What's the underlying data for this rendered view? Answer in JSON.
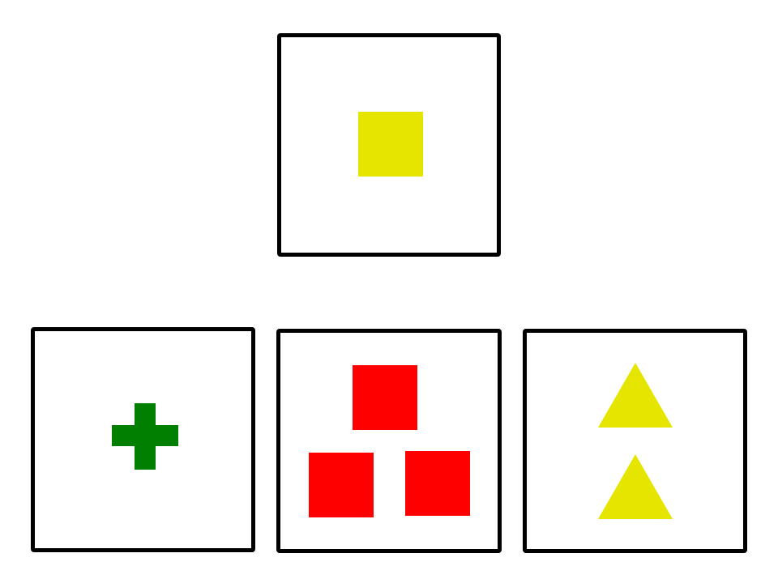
{
  "colors": {
    "border": "#000000",
    "yellow": "#e5e500",
    "green": "#007f00",
    "red": "#ff0000"
  },
  "cards": {
    "target": {
      "shape": "square",
      "color": "yellow",
      "count": 1
    },
    "option_a": {
      "shape": "cross",
      "color": "green",
      "count": 1
    },
    "option_b": {
      "shape": "square",
      "color": "red",
      "count": 3
    },
    "option_c": {
      "shape": "triangle",
      "color": "yellow",
      "count": 2
    }
  }
}
